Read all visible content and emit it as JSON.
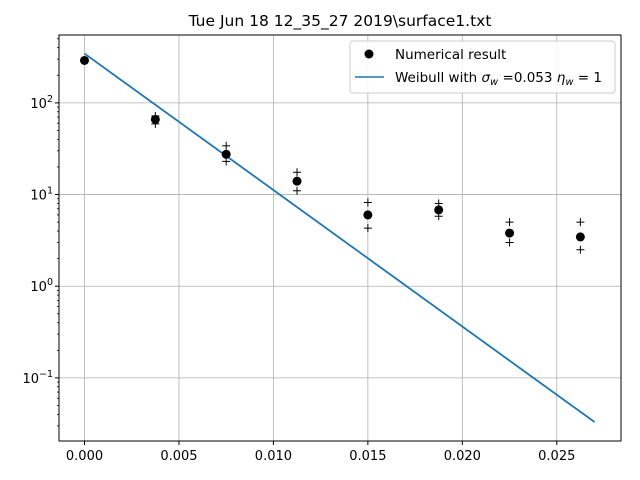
{
  "chart_data": {
    "type": "scatter",
    "title": "Tue Jun 18 12_35_27 2019\\surface1.txt",
    "xlabel": "",
    "ylabel": "",
    "xlim": [
      -0.00135,
      0.0284
    ],
    "ylim": [
      0.0205,
      550
    ],
    "y_scale": "log",
    "grid": true,
    "legend_position": "top-right",
    "x_ticks": [
      0.0,
      0.005,
      0.01,
      0.015,
      0.02,
      0.025
    ],
    "x_tick_labels": [
      "0.000",
      "0.005",
      "0.010",
      "0.015",
      "0.020",
      "0.025"
    ],
    "y_ticks": [
      {
        "value": 0.1,
        "base": "10",
        "exp": "−1"
      },
      {
        "value": 1,
        "base": "10",
        "exp": "0"
      },
      {
        "value": 10,
        "base": "10",
        "exp": "1"
      },
      {
        "value": 100,
        "base": "10",
        "exp": "2"
      }
    ],
    "series": [
      {
        "name": "Numerical result",
        "kind": "points",
        "color": "#000000",
        "x": [
          0.0,
          0.00375,
          0.0075,
          0.01125,
          0.015,
          0.01875,
          0.0225,
          0.02625
        ],
        "y": [
          290,
          66,
          27.5,
          14,
          6.0,
          6.8,
          3.8,
          3.45
        ],
        "upper": [
          0,
          72,
          34,
          17.5,
          8.2,
          8.0,
          5.0,
          5.0
        ],
        "lower": [
          0,
          59,
          23,
          11,
          4.3,
          5.8,
          3.0,
          2.5
        ]
      },
      {
        "name_prefix": "Weibull with ",
        "name_sigma_value": " =0.053 ",
        "name_eta_value": " = 1",
        "kind": "line",
        "color": "#1f77b4",
        "x": [
          0.0,
          0.027
        ],
        "y": [
          345,
          0.033
        ]
      }
    ]
  }
}
